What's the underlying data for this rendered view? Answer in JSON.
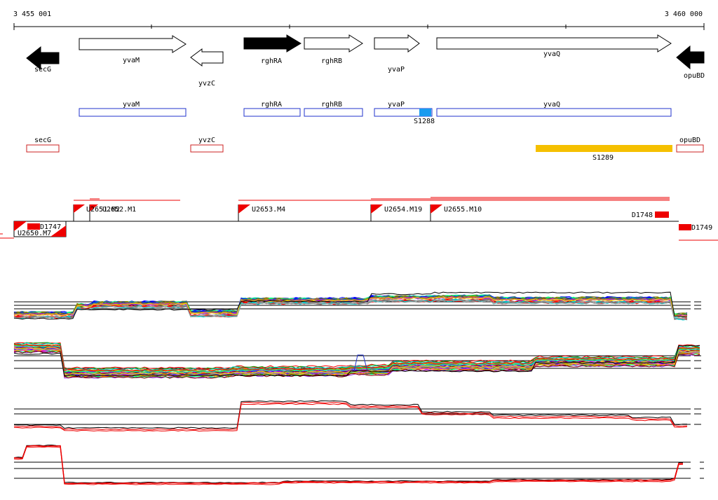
{
  "ruler": {
    "start_label": "3 455 001",
    "end_label": "3 460 000"
  },
  "genes": [
    {
      "name": "secG",
      "strand": "-",
      "highlight": true
    },
    {
      "name": "yvaM",
      "strand": "+",
      "highlight": false
    },
    {
      "name": "yvzC",
      "strand": "-",
      "highlight": false
    },
    {
      "name": "rghRA",
      "strand": "+",
      "highlight": true
    },
    {
      "name": "rghRB",
      "strand": "+",
      "highlight": false
    },
    {
      "name": "yvaP",
      "strand": "+",
      "highlight": false
    },
    {
      "name": "yvaQ",
      "strand": "+",
      "highlight": false
    },
    {
      "name": "opuBD",
      "strand": "-",
      "highlight": true
    }
  ],
  "plus_strand_boxes": [
    {
      "name": "yvaM"
    },
    {
      "name": "rghRA"
    },
    {
      "name": "rghRB"
    },
    {
      "name": "yvaP"
    },
    {
      "name": "yvaQ"
    }
  ],
  "minus_strand_boxes": [
    {
      "name": "secG"
    },
    {
      "name": "yvzC"
    },
    {
      "name": "opuBD"
    }
  ],
  "features": [
    {
      "name": "S1288",
      "color": "#1a9bf0"
    },
    {
      "name": "S1289",
      "color": "#f5c000"
    }
  ],
  "transcription_units": [
    {
      "name": "U2651.M2",
      "overlap_name": "U2652.M1"
    },
    {
      "name": "U2653.M4"
    },
    {
      "name": "U2654.M19"
    },
    {
      "name": "U2655.M10"
    },
    {
      "name": "U2650.M7"
    }
  ],
  "downshifts": [
    {
      "name": "D1747"
    },
    {
      "name": "D1748"
    },
    {
      "name": "D1749"
    }
  ],
  "colors": {
    "gene_highlight": "#000000",
    "plus_box": "#2233cc",
    "minus_box": "#cc2222",
    "unit_marker": "#ee0000",
    "expression_palette": [
      "#ff0000",
      "#00a000",
      "#0000ff",
      "#ff00ff",
      "#00c8c8",
      "#ff9900",
      "#808000",
      "#8a2be2",
      "#a0a0a0",
      "#ffd700",
      "#00ff7f",
      "#800000"
    ]
  }
}
